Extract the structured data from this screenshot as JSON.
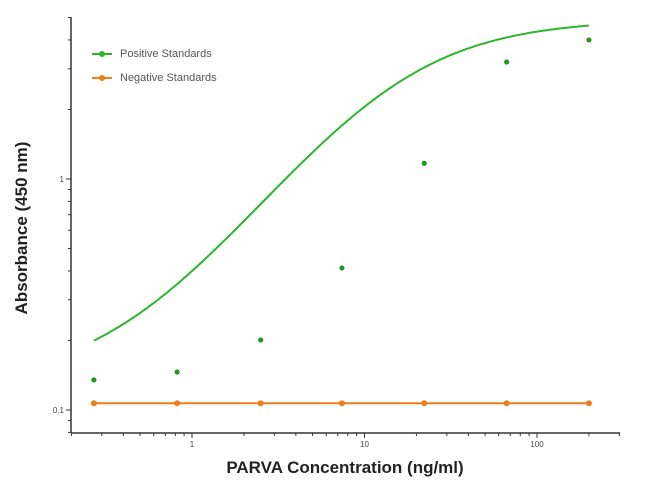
{
  "chart_data": {
    "type": "line",
    "title": "",
    "xlabel": "PARVA Concentration (ng/ml)",
    "ylabel": "Absorbance (450 nm)",
    "xscale": "log",
    "yscale": "log",
    "xlim": [
      0.2,
      300
    ],
    "ylim": [
      0.09,
      5
    ],
    "x_ticks": [
      1,
      10,
      100
    ],
    "x_tick_labels": [
      "1",
      "10",
      "100"
    ],
    "y_ticks": [
      0.1,
      1
    ],
    "y_tick_labels": [
      "0.1",
      "1"
    ],
    "grid": false,
    "legend_position": "upper left",
    "x": [
      0.27,
      0.82,
      2.5,
      7.4,
      22.2,
      66.7,
      200
    ],
    "series": [
      {
        "name": "Positive Standards",
        "color": "#2db52d",
        "values": [
          0.135,
          0.146,
          0.201,
          0.412,
          1.17,
          3.21,
          4.0
        ],
        "fit": "4PL sigmoid"
      },
      {
        "name": "Negative Standards",
        "color": "#f07d1c",
        "values": [
          0.107,
          0.107,
          0.107,
          0.107,
          0.107,
          0.107,
          0.107
        ]
      }
    ]
  },
  "legend": {
    "items": [
      {
        "label": "Positive Standards",
        "color": "#2db52d"
      },
      {
        "label": "Negative Standards",
        "color": "#f07d1c"
      }
    ]
  },
  "axes": {
    "xlabel": "PARVA Concentration (ng/ml)",
    "ylabel": "Absorbance (450 nm)"
  }
}
